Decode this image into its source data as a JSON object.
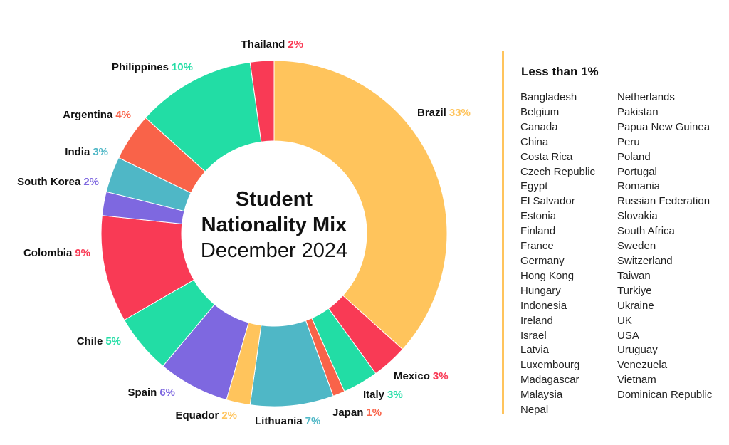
{
  "chart_data": {
    "type": "donut",
    "title_line1": "Student",
    "title_line2": "Nationality Mix",
    "subtitle": "December 2024",
    "slices": [
      {
        "label": "Brazil",
        "value": 33,
        "pct_text": "33%",
        "color": "#FFC45C"
      },
      {
        "label": "Mexico",
        "value": 3,
        "pct_text": "3%",
        "color": "#F93A55"
      },
      {
        "label": "Italy",
        "value": 3,
        "pct_text": "3%",
        "color": "#22DDA5"
      },
      {
        "label": "Japan",
        "value": 1,
        "pct_text": "1%",
        "color": "#F96349"
      },
      {
        "label": "Lithuania",
        "value": 7,
        "pct_text": "7%",
        "color": "#4FB7C6"
      },
      {
        "label": "Equador",
        "value": 2,
        "pct_text": "2%",
        "color": "#FFC45C"
      },
      {
        "label": "Spain",
        "value": 6,
        "pct_text": "6%",
        "color": "#7E68E0"
      },
      {
        "label": "Chile",
        "value": 5,
        "pct_text": "5%",
        "color": "#22DDA5"
      },
      {
        "label": "Colombia",
        "value": 9,
        "pct_text": "9%",
        "color": "#F93A55"
      },
      {
        "label": "South Korea",
        "value": 2,
        "pct_text": "2%",
        "color": "#7E68E0"
      },
      {
        "label": "India",
        "value": 3,
        "pct_text": "3%",
        "color": "#4FB7C6"
      },
      {
        "label": "Argentina",
        "value": 4,
        "pct_text": "4%",
        "color": "#F96349"
      },
      {
        "label": "Philippines",
        "value": 10,
        "pct_text": "10%",
        "color": "#22DDA5"
      },
      {
        "label": "Thailand",
        "value": 2,
        "pct_text": "2%",
        "color": "#F93A55"
      }
    ],
    "legend": {
      "title": "Less than 1%",
      "column1": [
        "Bangladesh",
        "Belgium",
        "Canada",
        "China",
        "Costa Rica",
        "Czech Republic",
        "Egypt",
        "El Salvador",
        "Estonia",
        "Finland",
        "France",
        "Germany",
        "Hong Kong",
        "Hungary",
        "Indonesia",
        "Ireland",
        "Israel",
        "Latvia",
        "Luxembourg",
        "Madagascar",
        "Malaysia",
        "Nepal"
      ],
      "column2": [
        "Netherlands",
        "Pakistan",
        "Papua New Guinea",
        "Peru",
        "Poland",
        "Portugal",
        "Romania",
        "Russian Federation",
        "Slovakia",
        "South Africa",
        "Sweden",
        "Switzerland",
        "Taiwan",
        "Turkiye",
        "Ukraine",
        "UK",
        "USA",
        "Uruguay",
        "Venezuela",
        "Vietnam",
        "Dominican Republic"
      ]
    },
    "accent_color": "#FFC45C"
  }
}
